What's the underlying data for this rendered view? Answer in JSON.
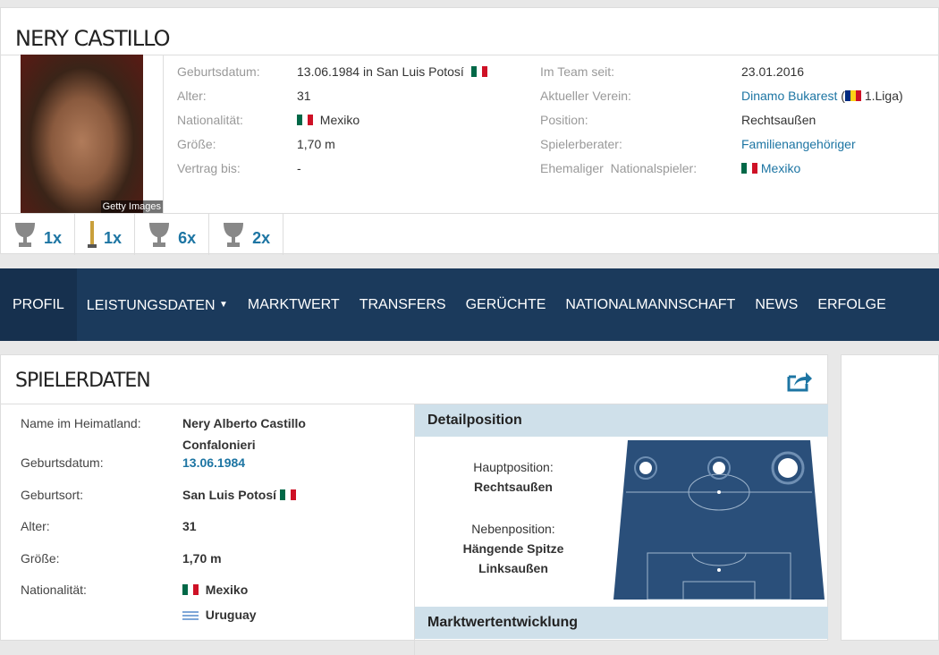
{
  "player": {
    "name": "NERY CASTILLO",
    "photo_credit": "Getty Images"
  },
  "info_left": [
    {
      "label": "Geburtsdatum:",
      "value": "13.06.1984 in San Luis Potosí",
      "flag": "mexico"
    },
    {
      "label": "Alter:",
      "value": "31"
    },
    {
      "label": "Nationalität:",
      "value": "Mexiko",
      "flag": "mexico"
    },
    {
      "label": "Größe:",
      "value": "1,70 m"
    },
    {
      "label": "Vertrag bis:",
      "value": "-"
    }
  ],
  "info_right": {
    "team_since": {
      "label": "Im Team seit:",
      "value": "23.01.2016"
    },
    "club": {
      "label": "Aktueller Verein:",
      "value": "Dinamo Bukarest",
      "league": "1.Liga",
      "open": " (",
      "close": ")"
    },
    "position": {
      "label": "Position:",
      "value": "Rechtsaußen"
    },
    "agent": {
      "label": "Spielerberater:",
      "value": "Familienangehöriger"
    },
    "national": {
      "label": "Ehemaliger  Nationalspieler:",
      "value": "Mexiko"
    }
  },
  "trophies": [
    {
      "icon": "trophy-icon",
      "count": "1x"
    },
    {
      "icon": "award-icon",
      "count": "1x"
    },
    {
      "icon": "trophy-icon",
      "count": "6x"
    },
    {
      "icon": "trophy-icon",
      "count": "2x"
    }
  ],
  "nav": [
    "PROFIL",
    "LEISTUNGSDATEN",
    "MARKTWERT",
    "TRANSFERS",
    "GERÜCHTE",
    "NATIONALMANNSCHAFT",
    "NEWS",
    "ERFOLGE"
  ],
  "spielerdaten": {
    "title": "SPIELERDATEN",
    "rows": [
      {
        "label": "Name im Heimatland:",
        "value": "Nery Alberto Castillo Confalonieri"
      },
      {
        "label": "Geburtsdatum:",
        "value": "13.06.1984",
        "link": true
      },
      {
        "label": "Geburtsort:",
        "value": "San Luis Potosí",
        "flag": "mexico"
      },
      {
        "label": "Alter:",
        "value": "31"
      },
      {
        "label": "Größe:",
        "value": "1,70 m"
      },
      {
        "label": "Nationalität:",
        "value": "Mexiko",
        "flag": "mexico",
        "extra": "Uruguay"
      }
    ]
  },
  "detailposition": {
    "title": "Detailposition",
    "main_label": "Hauptposition:",
    "main": "Rechtsaußen",
    "side_label": "Nebenposition:",
    "side": [
      "Hängende Spitze",
      "Linksaußen"
    ]
  },
  "market": {
    "title": "Marktwertentwicklung"
  },
  "colors": {
    "nav": "#1b3a5c",
    "link": "#1d75a3",
    "pitch": "#2a4f7a"
  }
}
